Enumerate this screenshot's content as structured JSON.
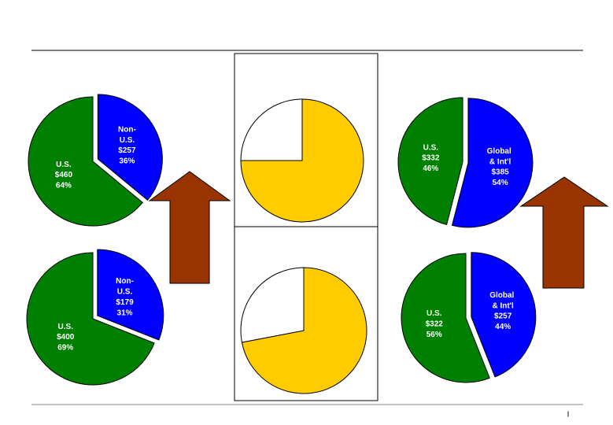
{
  "chart_data": [
    {
      "type": "pie",
      "categories": [
        "Non-U.S.",
        "U.S."
      ],
      "values": [
        36,
        64
      ],
      "value_labels": [
        "36%",
        "64%"
      ],
      "amount_labels": [
        "$257",
        "$460"
      ],
      "colors": [
        "#0000ff",
        "#008000"
      ]
    },
    {
      "type": "pie",
      "categories": [
        "Non-U.S.",
        "U.S."
      ],
      "values": [
        31,
        69
      ],
      "value_labels": [
        "31%",
        "69%"
      ],
      "amount_labels": [
        "$179",
        "$400"
      ],
      "colors": [
        "#0000ff",
        "#008000"
      ]
    },
    {
      "type": "pie",
      "values": [
        75,
        25
      ],
      "colors": [
        "#ffcc00",
        "#ffffff"
      ]
    },
    {
      "type": "pie",
      "values": [
        72,
        28
      ],
      "colors": [
        "#ffcc00",
        "#ffffff"
      ]
    },
    {
      "type": "pie",
      "categories": [
        "Global & Int'l",
        "U.S."
      ],
      "values": [
        54,
        46
      ],
      "value_labels": [
        "54%",
        "46%"
      ],
      "amount_labels": [
        "$385",
        "$332"
      ],
      "colors": [
        "#0000ff",
        "#008000"
      ]
    },
    {
      "type": "pie",
      "categories": [
        "Global & Int'l",
        "U.S."
      ],
      "values": [
        44,
        56
      ],
      "value_labels": [
        "44%",
        "56%"
      ],
      "amount_labels": [
        "$257",
        "$322"
      ],
      "colors": [
        "#0000ff",
        "#008000"
      ]
    }
  ],
  "footer_mark": "I"
}
